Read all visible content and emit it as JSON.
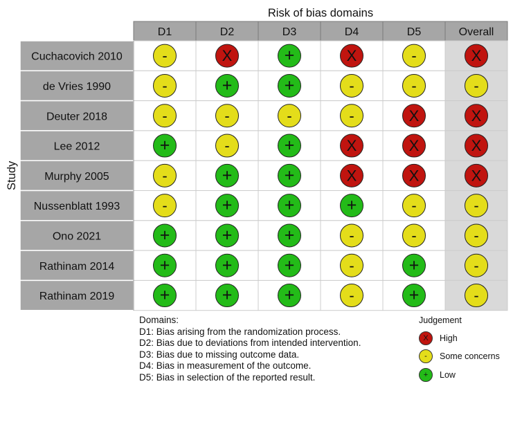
{
  "chart_data": {
    "type": "table",
    "title": "Risk of bias domains",
    "ylabel": "Study",
    "columns": [
      "D1",
      "D2",
      "D3",
      "D4",
      "D5",
      "Overall"
    ],
    "rows": [
      {
        "study": "Cuchacovich 2010",
        "judgements": [
          "some",
          "high",
          "low",
          "high",
          "some",
          "high"
        ]
      },
      {
        "study": "de Vries 1990",
        "judgements": [
          "some",
          "low",
          "low",
          "some",
          "some",
          "some"
        ]
      },
      {
        "study": "Deuter 2018",
        "judgements": [
          "some",
          "some",
          "some",
          "some",
          "high",
          "high"
        ]
      },
      {
        "study": "Lee 2012",
        "judgements": [
          "low",
          "some",
          "low",
          "high",
          "high",
          "high"
        ]
      },
      {
        "study": "Murphy 2005",
        "judgements": [
          "some",
          "low",
          "low",
          "high",
          "high",
          "high"
        ]
      },
      {
        "study": "Nussenblatt 1993",
        "judgements": [
          "some",
          "low",
          "low",
          "low",
          "some",
          "some"
        ]
      },
      {
        "study": "Ono 2021",
        "judgements": [
          "low",
          "low",
          "low",
          "some",
          "some",
          "some"
        ]
      },
      {
        "study": "Rathinam 2014",
        "judgements": [
          "low",
          "low",
          "low",
          "some",
          "low",
          "some"
        ]
      },
      {
        "study": "Rathinam 2019",
        "judgements": [
          "low",
          "low",
          "low",
          "some",
          "low",
          "some"
        ]
      }
    ],
    "judgement_styles": {
      "high": {
        "symbol": "X",
        "color": "#c0140f"
      },
      "some": {
        "symbol": "-",
        "color": "#e4dd1a"
      },
      "low": {
        "symbol": "+",
        "color": "#23bb18"
      }
    }
  },
  "domains_legend": {
    "heading": "Domains:",
    "items": [
      "D1: Bias arising from the randomization process.",
      "D2: Bias due to deviations from intended intervention.",
      "D3: Bias due to missing outcome data.",
      "D4: Bias in measurement of the outcome.",
      "D5: Bias in selection of the reported result."
    ]
  },
  "judgement_legend": {
    "title": "Judgement",
    "items": [
      {
        "key": "high",
        "label": "High",
        "symbol": "X"
      },
      {
        "key": "some",
        "label": "Some concerns",
        "symbol": "-"
      },
      {
        "key": "low",
        "label": "Low",
        "symbol": "+"
      }
    ]
  },
  "colors": {
    "header_bg": "#a6a6a6",
    "study_bg": "#a6a6a6",
    "overall_bg": "#d9d9d9",
    "cell_bg": "#ffffff",
    "grid": "#cccccc",
    "high": "#c0140f",
    "some": "#e4dd1a",
    "low": "#23bb18"
  }
}
